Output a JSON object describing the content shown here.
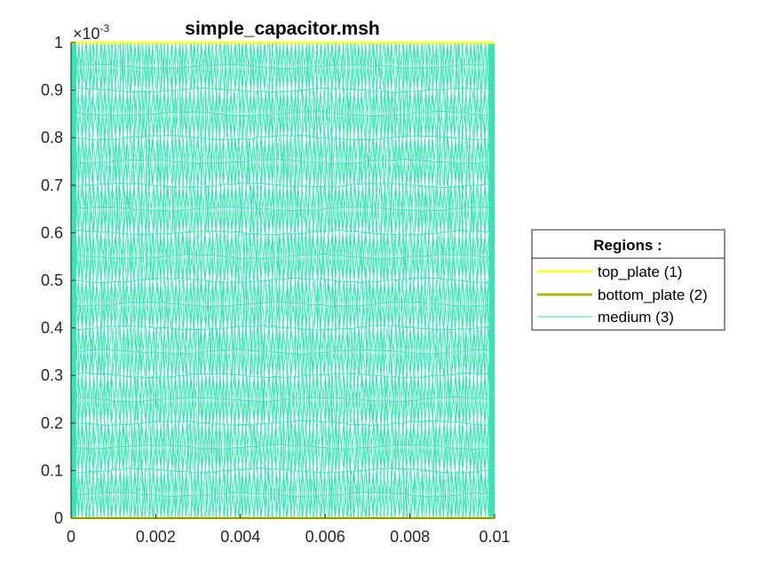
{
  "chart_data": {
    "type": "line",
    "title": "simple_capacitor.msh",
    "xlabel": "",
    "ylabel": "",
    "xlim": [
      0,
      0.01
    ],
    "ylim": [
      0,
      0.001
    ],
    "x_ticks": [
      0,
      0.002,
      0.004,
      0.006,
      0.008,
      0.01
    ],
    "x_tick_labels": [
      "0",
      "0.002",
      "0.004",
      "0.006",
      "0.008",
      "0.01"
    ],
    "y_ticks": [
      0,
      0.0001,
      0.0002,
      0.0003,
      0.0004,
      0.0005,
      0.0006,
      0.0007,
      0.0008,
      0.0009,
      0.001
    ],
    "y_tick_labels": [
      "0",
      "0.1",
      "0.2",
      "0.3",
      "0.4",
      "0.5",
      "0.6",
      "0.7",
      "0.8",
      "0.9",
      "1"
    ],
    "y_exponent": {
      "base": "×10",
      "power": "-3"
    },
    "grid": false,
    "legend": {
      "title": "Regions :",
      "placement": "right"
    },
    "series": [
      {
        "name": "top_plate (1)",
        "color": "#ffff33",
        "x": [
          0,
          0.01
        ],
        "y": [
          0.001,
          0.001
        ]
      },
      {
        "name": "bottom_plate (2)",
        "color": "#b3b31a",
        "x": [
          0,
          0.01
        ],
        "y": [
          0,
          0
        ]
      },
      {
        "name": "medium (3)",
        "color": "#33e6b3",
        "mesh": true,
        "xlim": [
          0,
          0.01
        ],
        "ylim": [
          0,
          0.001
        ]
      }
    ]
  },
  "colors": {
    "top_plate": "#ffff33",
    "bottom_plate": "#b3b31a",
    "medium": "#33e6b3",
    "axes": "#262626"
  }
}
